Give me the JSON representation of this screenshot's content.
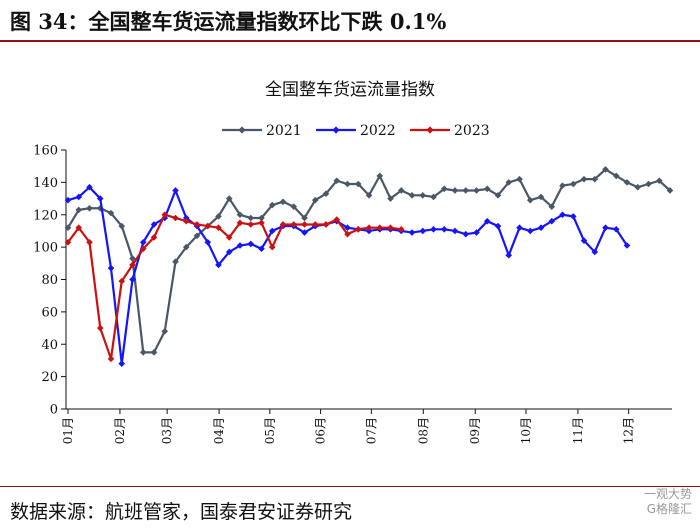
{
  "figure_title": "图 34：全国整车货运流量指数环比下跌 0.1%",
  "footer": "数据来源：航班管家，国泰君安证券研究",
  "watermark": {
    "line1": "一观大势",
    "line2": "G格隆汇"
  },
  "chart_data": {
    "type": "line",
    "title": "全国整车货运流量指数",
    "xlabel": "",
    "ylabel": "",
    "ylim": [
      0,
      160
    ],
    "yticks": [
      0,
      20,
      40,
      60,
      80,
      100,
      120,
      140,
      160
    ],
    "x_unit": "week",
    "xlim": [
      1,
      52
    ],
    "month_ticks": [
      {
        "label": "01月",
        "x": 1
      },
      {
        "label": "02月",
        "x": 5.4
      },
      {
        "label": "03月",
        "x": 9.4
      },
      {
        "label": "04月",
        "x": 13.8
      },
      {
        "label": "05月",
        "x": 18.1
      },
      {
        "label": "06月",
        "x": 22.4
      },
      {
        "label": "07月",
        "x": 26.7
      },
      {
        "label": "08月",
        "x": 31.1
      },
      {
        "label": "09月",
        "x": 35.5
      },
      {
        "label": "10月",
        "x": 39.8
      },
      {
        "label": "11月",
        "x": 44.2
      },
      {
        "label": "12月",
        "x": 48.5
      }
    ],
    "grid": false,
    "legend": "top-center",
    "series": [
      {
        "name": "2021",
        "color": "#4a5766",
        "marker": "diamond",
        "values": [
          112,
          123,
          124,
          124,
          121,
          113,
          93,
          35,
          35,
          48,
          91,
          100,
          107,
          113,
          119,
          130,
          120,
          118,
          118,
          126,
          128,
          125,
          118,
          129,
          133,
          141,
          139,
          139,
          132,
          144,
          130,
          135,
          132,
          132,
          131,
          136,
          135,
          135,
          135,
          136,
          132,
          140,
          142,
          129,
          131,
          125,
          138,
          139,
          142,
          142,
          148,
          144,
          140,
          137,
          139,
          141,
          135
        ]
      },
      {
        "name": "2022",
        "color": "#1414ff",
        "marker": "diamond",
        "values": [
          129,
          131,
          137,
          130,
          87,
          28,
          80,
          103,
          114,
          118,
          135,
          118,
          113,
          103,
          89,
          97,
          101,
          102,
          99,
          110,
          113,
          113,
          109,
          113,
          114,
          116,
          112,
          111,
          110,
          111,
          111,
          110,
          109,
          110,
          111,
          111,
          110,
          108,
          109,
          116,
          113,
          95,
          112,
          110,
          112,
          116,
          120,
          119,
          104,
          97,
          112,
          111,
          101
        ]
      },
      {
        "name": "2023",
        "color": "#cc1111",
        "marker": "diamond",
        "values": [
          103,
          112,
          103,
          50,
          31,
          79,
          89,
          99,
          106,
          120,
          118,
          116,
          114,
          113,
          112,
          106,
          115,
          114,
          115,
          100,
          114,
          114,
          114,
          114,
          114,
          117,
          108,
          111,
          112,
          112,
          112,
          111
        ]
      }
    ]
  }
}
